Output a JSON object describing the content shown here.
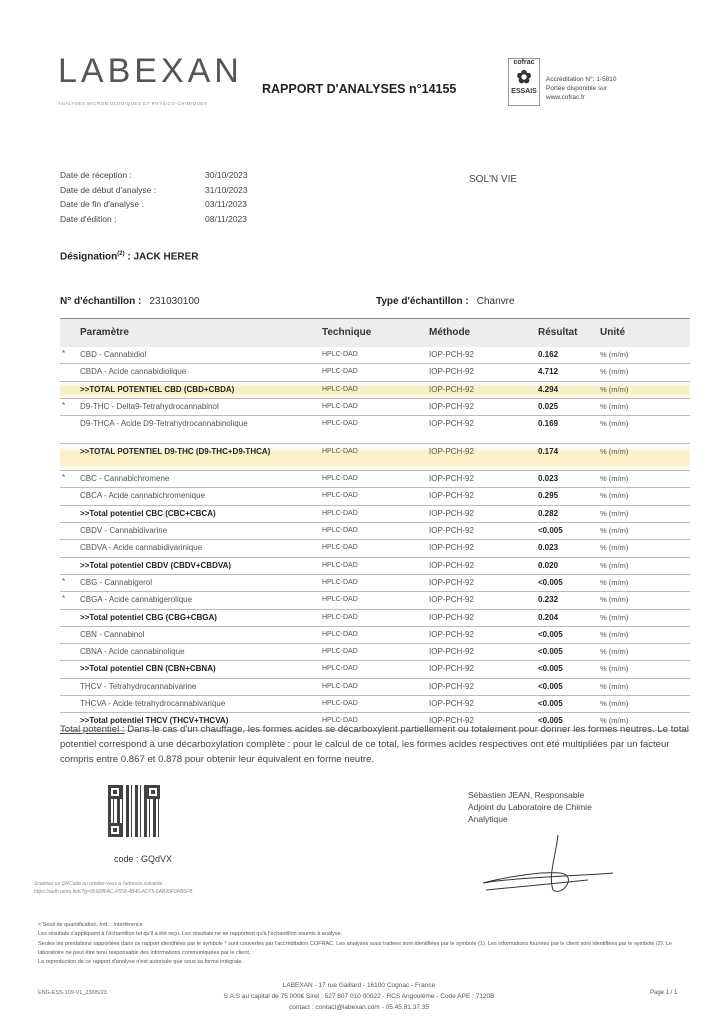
{
  "header": {
    "logo": "LABEXAN",
    "logo_subtitle": "ANALYSES MICROBIOLOGIQUES ET PHYSICO-CHIMIQUES",
    "title": "RAPPORT D'ANALYSES n°14155",
    "cofrac_logo": "cofrac",
    "cofrac_sub": "ESSAIS",
    "accreditation": "Accréditation N°: 1-5810",
    "scope": "Portée disponible sur",
    "site": "www.cofrac.fr"
  },
  "dates": [
    {
      "label": "Date de réception :",
      "value": "30/10/2023"
    },
    {
      "label": "Date de début d'analyse :",
      "value": "31/10/2023"
    },
    {
      "label": "Date de fin d'analyse :",
      "value": "03/11/2023"
    },
    {
      "label": "Date d'édition :",
      "value": "08/11/2023"
    }
  ],
  "client": "SOL'N VIE",
  "designation": {
    "label": "Désignation",
    "sup": "(2)",
    "value": ": JACK HERER"
  },
  "sample": {
    "number_label": "N° d'échantillon :",
    "number": "231030100",
    "type_label": "Type d'échantillon :",
    "type": "Chanvre"
  },
  "table": {
    "headers": [
      "Paramètre",
      "Technique",
      "Méthode",
      "Résultat",
      "Unité"
    ],
    "rows": [
      {
        "star": "*",
        "param": "CBD - Cannabidiol",
        "tech": "HPLC-DAD",
        "method": "IOP-PCH-92",
        "result": "0.162",
        "unit": "% (m/m)"
      },
      {
        "star": "",
        "param": "CBDA - Acide cannabidiolique",
        "tech": "HPLC-DAD",
        "method": "IOP-PCH-92",
        "result": "4.712",
        "unit": "% (m/m)"
      },
      {
        "star": "",
        "param": ">>TOTAL POTENTIEL CBD (CBD+CBDA)",
        "tech": "HPLC-DAD",
        "method": "IOP-PCH-92",
        "result": "4.294",
        "unit": "% (m/m)",
        "total": true,
        "highlight": true
      },
      {
        "star": "*",
        "param": "D9-THC - Delta9-Tetrahydrocannabinol",
        "tech": "HPLC-DAD",
        "method": "IOP-PCH-92",
        "result": "0.025",
        "unit": "% (m/m)"
      },
      {
        "star": "",
        "param": "D9-THCA - Acide D9-Tetrahydrocannabinolique",
        "tech": "HPLC-DAD",
        "method": "IOP-PCH-92",
        "result": "0.169",
        "unit": "% (m/m)",
        "double": true
      },
      {
        "star": "",
        "param": ">>TOTAL POTENTIEL D9-THC (D9-THC+D9-THCA)",
        "tech": "HPLC-DAD",
        "method": "IOP-PCH-92",
        "result": "0.174",
        "unit": "% (m/m)",
        "total": true,
        "highlight": true,
        "double": true
      },
      {
        "star": "*",
        "param": "CBC - Cannabichromene",
        "tech": "HPLC-DAD",
        "method": "IOP-PCH-92",
        "result": "0.023",
        "unit": "% (m/m)"
      },
      {
        "star": "",
        "param": "CBCA - Acide cannabichromenique",
        "tech": "HPLC-DAD",
        "method": "IOP-PCH-92",
        "result": "0.295",
        "unit": "% (m/m)"
      },
      {
        "star": "",
        "param": ">>Total potentiel CBC (CBC+CBCA)",
        "tech": "HPLC-DAD",
        "method": "IOP-PCH-92",
        "result": "0.282",
        "unit": "% (m/m)",
        "total": true
      },
      {
        "star": "",
        "param": "CBDV - Cannabidivarine",
        "tech": "HPLC-DAD",
        "method": "IOP-PCH-92",
        "result": "<0.005",
        "unit": "% (m/m)"
      },
      {
        "star": "",
        "param": "CBDVA - Acide cannabidivarinique",
        "tech": "HPLC-DAD",
        "method": "IOP-PCH-92",
        "result": "0.023",
        "unit": "% (m/m)"
      },
      {
        "star": "",
        "param": ">>Total potentiel CBDV (CBDV+CBDVA)",
        "tech": "HPLC-DAD",
        "method": "IOP-PCH-92",
        "result": "0.020",
        "unit": "% (m/m)",
        "total": true
      },
      {
        "star": "*",
        "param": "CBG - Cannabigerol",
        "tech": "HPLC-DAD",
        "method": "IOP-PCH-92",
        "result": "<0.005",
        "unit": "% (m/m)"
      },
      {
        "star": "*",
        "param": "CBGA - Acide cannabigerolique",
        "tech": "HPLC-DAD",
        "method": "IOP-PCH-92",
        "result": "0.232",
        "unit": "% (m/m)"
      },
      {
        "star": "",
        "param": ">>Total potentiel CBG (CBG+CBGA)",
        "tech": "HPLC-DAD",
        "method": "IOP-PCH-92",
        "result": "0.204",
        "unit": "% (m/m)",
        "total": true
      },
      {
        "star": "",
        "param": "CBN - Cannabinol",
        "tech": "HPLC-DAD",
        "method": "IOP-PCH-92",
        "result": "<0.005",
        "unit": "% (m/m)"
      },
      {
        "star": "",
        "param": "CBNA - Acide cannabinolique",
        "tech": "HPLC-DAD",
        "method": "IOP-PCH-92",
        "result": "<0.005",
        "unit": "% (m/m)"
      },
      {
        "star": "",
        "param": ">>Total potentiel CBN (CBN+CBNA)",
        "tech": "HPLC-DAD",
        "method": "IOP-PCH-92",
        "result": "<0.005",
        "unit": "% (m/m)",
        "total": true
      },
      {
        "star": "",
        "param": "THCV - Tetrahydrocannabivarine",
        "tech": "HPLC-DAD",
        "method": "IOP-PCH-92",
        "result": "<0.005",
        "unit": "% (m/m)"
      },
      {
        "star": "",
        "param": "THCVA - Acide tetrahydrocannabivarique",
        "tech": "HPLC-DAD",
        "method": "IOP-PCH-92",
        "result": "<0.005",
        "unit": "% (m/m)"
      },
      {
        "star": "",
        "param": ">>Total potentiel THCV (THCV+THCVA)",
        "tech": "HPLC-DAD",
        "method": "IOP-PCH-92",
        "result": "<0.005",
        "unit": "% (m/m)",
        "total": true
      }
    ]
  },
  "note": {
    "label": "Total potentiel :",
    "text": " Dans le cas d'un chauffage, les formes acides se décarboxylent partiellement ou totalement pour donner les formes neutres. Le total potentiel correspond à une décarboxylation complète : pour le calcul de ce total, les formes acides respectives ont été multipliées par un facteur compris entre 0.867 et 0.878 pour obtenir leur équivalent en forme neutre."
  },
  "qr": {
    "code": "code  :  GQdVX",
    "scan": "Scannez ce QRCode ou rendez-vous à l'adresse suivante :",
    "url": "https://auth.oeno.link/?g=95928FAC-F558-4B46-AD75-6AB99F0AB6FB"
  },
  "signatory": {
    "name": "Sébastien JEAN, Responsable",
    "role1": "Adjoint du Laboratoire de Chimie",
    "role2": "Analytique"
  },
  "fine_print": [
    "< Seuil de quantification, Intf. : Interférence",
    "Les résultats s'appliquent à l'échantillon tel qu'il a été reçu. Les résultats ne se rapportent qu'à l'échantillon soumis à analyse.",
    "Seules les prestations rapportées dans ce rapport identifiées par le symbole * sont couvertes par l'accréditation COFRAC. Les analyses sous traitées sont identifiées par le symbole (1). Les informations fournies par le client sont identifiées par le symbole (2). Le laboratoire ne peut être tenu responsable des informations communiquées par le client.",
    "La reproduction de ce rapport d'analyse n'est autorisée que sous sa forme intégrale."
  ],
  "footer": {
    "ref": "ENG-ESS-109-V1_23/05/23",
    "line1": "LABEXAN - 17 rue Gaillard - 16100 Cognac - France",
    "line2": "S.A.S au capital de 75 000€ Siret : 527 807 010 00022 - RCS Angoulême - Code APE : 7120B",
    "line3": "contact : contact@labexan.com - 05.45.81.37.35",
    "page": "Page 1 / 1"
  }
}
